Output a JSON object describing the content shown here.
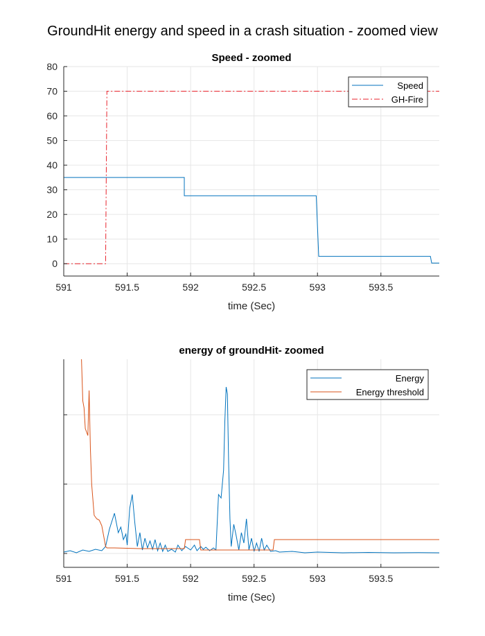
{
  "figure_title": "GroundHit energy and speed in a crash situation - zoomed view",
  "colors": {
    "blue": "#0072BD",
    "orange": "#D95319",
    "red": "#E8222B",
    "grid": "#e6e6e6",
    "axis": "#262626"
  },
  "chart_data": [
    {
      "type": "line",
      "title": "Speed - zoomed",
      "xlabel": "time (Sec)",
      "ylabel": "",
      "xlim": [
        591,
        593.96
      ],
      "ylim": [
        -5,
        80
      ],
      "xticks": [
        591,
        591.5,
        592,
        592.5,
        593,
        593.5
      ],
      "xtick_labels": [
        "591",
        "591.5",
        "592",
        "592.5",
        "593",
        "593.5"
      ],
      "yticks": [
        0,
        10,
        20,
        30,
        40,
        50,
        60,
        70,
        80
      ],
      "ytick_labels": [
        "0",
        "10",
        "20",
        "30",
        "40",
        "50",
        "60",
        "70",
        "80"
      ],
      "grid": true,
      "legend_position": "top-right",
      "series": [
        {
          "name": "Speed",
          "style": "solid",
          "color": "#0072BD",
          "x": [
            591,
            591.95,
            591.95,
            592.0,
            592.99,
            593.01,
            593.89,
            593.9,
            593.96
          ],
          "y": [
            35,
            35,
            27.6,
            27.6,
            27.6,
            3,
            3,
            0.3,
            0.3
          ]
        },
        {
          "name": "GH-Fire",
          "style": "dashdot",
          "color": "#E8222B",
          "x": [
            591,
            591.33,
            591.34,
            593.96
          ],
          "y": [
            0,
            0,
            70,
            70
          ]
        }
      ]
    },
    {
      "type": "line",
      "title": "energy of groundHit- zoomed",
      "xlabel": "time (Sec)",
      "ylabel": "",
      "xlim": [
        591,
        593.96
      ],
      "ylim": [
        -0.2,
        2.8
      ],
      "xticks": [
        591,
        591.5,
        592,
        592.5,
        593,
        593.5
      ],
      "xtick_labels": [
        "591",
        "591.5",
        "592",
        "592.5",
        "593",
        "593.5"
      ],
      "yticks": [
        0,
        1,
        2
      ],
      "ytick_labels": [
        "",
        "",
        ""
      ],
      "grid": true,
      "legend_position": "top-right",
      "series": [
        {
          "name": "Energy",
          "style": "solid",
          "color": "#0072BD",
          "x": [
            591,
            591.05,
            591.1,
            591.15,
            591.2,
            591.25,
            591.3,
            591.33,
            591.36,
            591.4,
            591.43,
            591.45,
            591.47,
            591.49,
            591.5,
            591.52,
            591.54,
            591.56,
            591.58,
            591.6,
            591.62,
            591.64,
            591.66,
            591.68,
            591.7,
            591.72,
            591.74,
            591.76,
            591.78,
            591.8,
            591.82,
            591.85,
            591.88,
            591.9,
            591.93,
            591.96,
            592.0,
            592.03,
            592.05,
            592.08,
            592.1,
            592.12,
            592.15,
            592.18,
            592.2,
            592.22,
            592.24,
            592.26,
            592.27,
            592.28,
            592.29,
            592.3,
            592.31,
            592.32,
            592.34,
            592.36,
            592.38,
            592.4,
            592.42,
            592.44,
            592.46,
            592.48,
            592.5,
            592.52,
            592.54,
            592.56,
            592.58,
            592.6,
            592.63,
            592.67,
            592.7,
            592.8,
            592.9,
            593.0,
            593.2,
            593.4,
            593.6,
            593.8,
            593.96
          ],
          "y": [
            0.02,
            0.04,
            0.01,
            0.05,
            0.03,
            0.06,
            0.04,
            0.1,
            0.35,
            0.58,
            0.3,
            0.38,
            0.2,
            0.28,
            0.12,
            0.65,
            0.85,
            0.45,
            0.1,
            0.3,
            0.05,
            0.22,
            0.08,
            0.18,
            0.06,
            0.2,
            0.04,
            0.15,
            0.03,
            0.12,
            0.03,
            0.06,
            0.02,
            0.12,
            0.04,
            0.1,
            0.05,
            0.12,
            0.04,
            0.1,
            0.06,
            0.09,
            0.04,
            0.08,
            0.05,
            0.85,
            0.8,
            1.2,
            1.9,
            2.4,
            2.3,
            1.3,
            0.5,
            0.1,
            0.42,
            0.25,
            0.05,
            0.3,
            0.15,
            0.5,
            0.05,
            0.22,
            0.03,
            0.15,
            0.03,
            0.22,
            0.05,
            0.12,
            0.03,
            0.04,
            0.02,
            0.03,
            0.01,
            0.02,
            0.01,
            0.015,
            0.01,
            0.012,
            0.01
          ]
        },
        {
          "name": "Energy threshold",
          "style": "solid",
          "color": "#D95319",
          "x": [
            591,
            591.05,
            591.1,
            591.14,
            591.15,
            591.16,
            591.17,
            591.18,
            591.19,
            591.2,
            591.21,
            591.22,
            591.24,
            591.26,
            591.28,
            591.3,
            591.32,
            591.33,
            591.34,
            591.4,
            591.6,
            591.9,
            591.95,
            591.96,
            592.07,
            592.08,
            592.3,
            592.65,
            592.66,
            593.96
          ],
          "y": [
            2.9,
            2.9,
            2.85,
            2.8,
            2.2,
            2.1,
            1.8,
            1.75,
            1.7,
            2.35,
            1.5,
            1.0,
            0.55,
            0.5,
            0.48,
            0.4,
            0.2,
            0.1,
            0.08,
            0.08,
            0.07,
            0.07,
            0.07,
            0.2,
            0.2,
            0.05,
            0.05,
            0.05,
            0.2,
            0.2
          ]
        }
      ]
    }
  ]
}
